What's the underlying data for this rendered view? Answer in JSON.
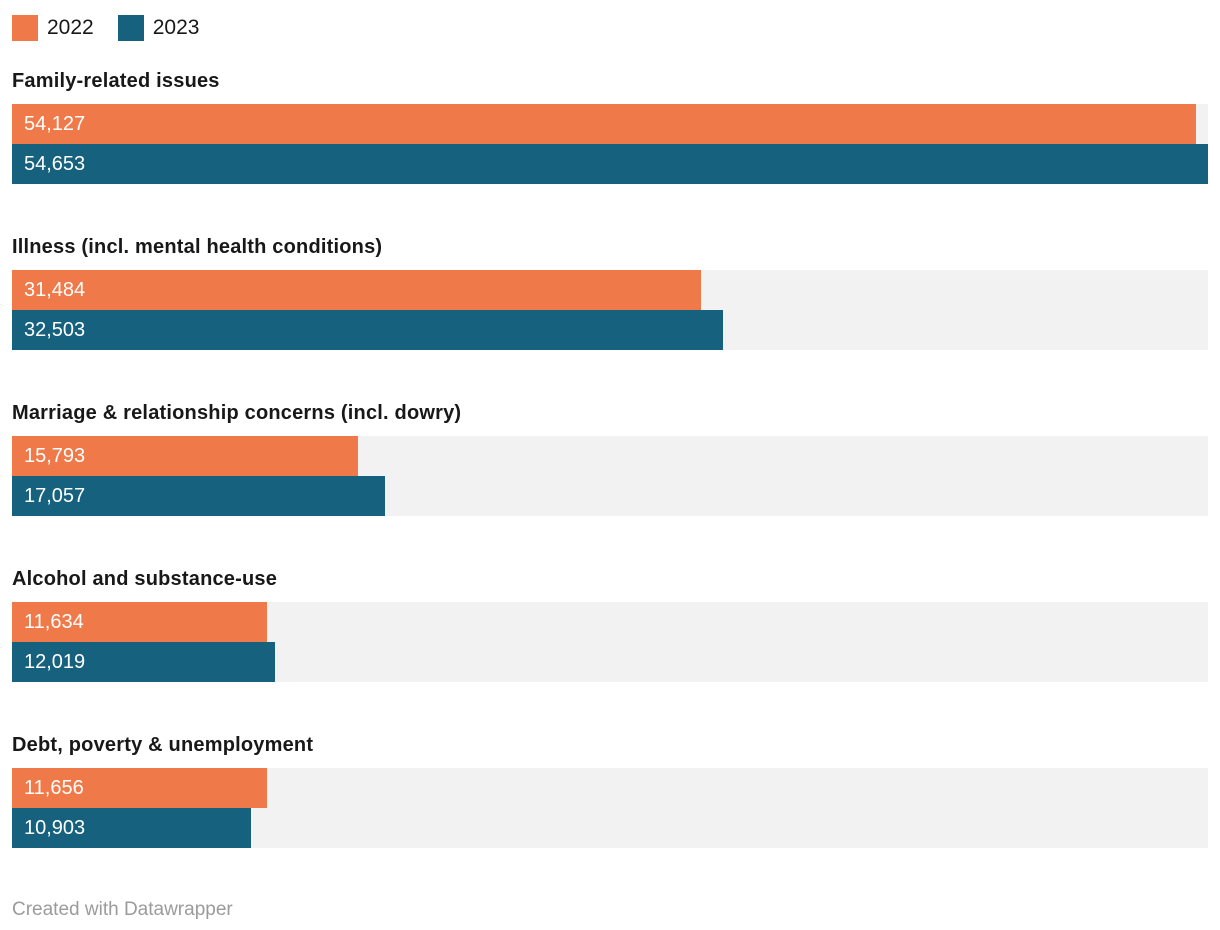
{
  "legend": {
    "items": [
      {
        "label": "2022",
        "color": "#F0794A"
      },
      {
        "label": "2023",
        "color": "#15617E"
      }
    ]
  },
  "chart_data": {
    "type": "bar",
    "orientation": "horizontal",
    "title": "",
    "categories": [
      "Family-related issues",
      "Illness (incl. mental health conditions)",
      "Marriage & relationship concerns (incl. dowry)",
      "Alcohol and substance-use",
      "Debt, poverty & unemployment"
    ],
    "series": [
      {
        "name": "2022",
        "color": "#F0794A",
        "values": [
          54127,
          31484,
          15793,
          11634,
          11656
        ],
        "labels": [
          "54,127",
          "31,484",
          "15,793",
          "11,634",
          "11,656"
        ]
      },
      {
        "name": "2023",
        "color": "#15617E",
        "values": [
          54653,
          32503,
          17057,
          12019,
          10903
        ],
        "labels": [
          "54,653",
          "32,503",
          "17,057",
          "12,019",
          "10,903"
        ]
      }
    ],
    "max_value": 54653,
    "track_color": "#F2F2F2",
    "value_label_color": "#FFFFFF",
    "legend_position": "top",
    "grid": false
  },
  "footer": {
    "attribution": "Created with Datawrapper"
  }
}
